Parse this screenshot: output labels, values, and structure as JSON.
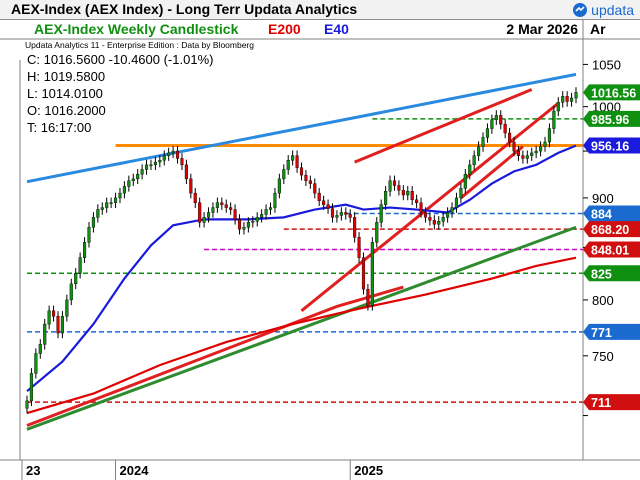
{
  "window": {
    "title": "AEX-Index (AEX Index) - Long Terr  Updata Analytics",
    "brand": "updata",
    "brand_color": "#1a6ad0",
    "icon": "updata-logo-icon"
  },
  "header": {
    "chart_title": "AEX-Index Weekly Candlestick",
    "ma1_label": "E200",
    "ma1_color": "#e00000",
    "ma2_label": "E40",
    "ma2_color": "#1a1adc",
    "date": "2 Mar 2026",
    "axis_unit": "Ar",
    "subtitle": "Updata Analytics 11 - Enterprise Edition : Data by Bloomberg"
  },
  "ohlc": {
    "close": "C: 1016.5600  -10.4600 (-1.01%)",
    "high": "H: 1019.5800",
    "low": "L: 1014.0100",
    "open": "O: 1016.2000",
    "time": "T: 16:17:00"
  },
  "chart_data": {
    "type": "candlestick",
    "title": "AEX-Index Weekly Candlestick",
    "ylim": [
      665,
      1080
    ],
    "y_scale": "log",
    "y_ticks": [
      700,
      750,
      800,
      850,
      900,
      950,
      1000,
      1050
    ],
    "y_tick_labels": [
      "",
      "750",
      "800",
      "",
      "900",
      "",
      "1000",
      "1050"
    ],
    "x_labels": [
      {
        "label": "23",
        "week": 0
      },
      {
        "label": "2024",
        "week": 20
      },
      {
        "label": "2025",
        "week": 73
      }
    ],
    "weeks_total": 124,
    "last_week": 124,
    "closes": [
      712,
      735,
      752,
      760,
      778,
      790,
      785,
      770,
      785,
      800,
      815,
      825,
      840,
      855,
      870,
      880,
      888,
      890,
      895,
      895,
      900,
      905,
      912,
      918,
      920,
      925,
      930,
      935,
      935,
      938,
      940,
      945,
      948,
      950,
      942,
      935,
      920,
      905,
      895,
      875,
      880,
      885,
      890,
      895,
      893,
      890,
      888,
      878,
      868,
      870,
      875,
      876,
      880,
      883,
      888,
      890,
      905,
      920,
      930,
      940,
      945,
      932,
      924,
      918,
      915,
      905,
      897,
      893,
      889,
      880,
      882,
      885,
      883,
      880,
      860,
      840,
      810,
      795,
      855,
      875,
      893,
      907,
      918,
      913,
      908,
      903,
      907,
      898,
      895,
      885,
      880,
      877,
      873,
      876,
      880,
      885,
      890,
      900,
      910,
      925,
      935,
      945,
      955,
      965,
      975,
      985,
      990,
      980,
      970,
      960,
      950,
      945,
      942,
      945,
      948,
      950,
      955,
      960,
      975,
      995,
      1005,
      1012,
      1006,
      1010,
      1016.56
    ],
    "ema200": {
      "label": "E200",
      "color": "#e00000",
      "points": [
        [
          0,
          702
        ],
        [
          15,
          718
        ],
        [
          30,
          742
        ],
        [
          45,
          762
        ],
        [
          60,
          778
        ],
        [
          75,
          792
        ],
        [
          90,
          805
        ],
        [
          105,
          820
        ],
        [
          115,
          832
        ],
        [
          124,
          840
        ]
      ]
    },
    "ema40": {
      "label": "E40",
      "color": "#1a1adc",
      "points": [
        [
          0,
          720
        ],
        [
          8,
          745
        ],
        [
          15,
          778
        ],
        [
          22,
          820
        ],
        [
          28,
          852
        ],
        [
          33,
          872
        ],
        [
          40,
          878
        ],
        [
          50,
          878
        ],
        [
          58,
          880
        ],
        [
          65,
          888
        ],
        [
          72,
          893
        ],
        [
          76,
          888
        ],
        [
          82,
          890
        ],
        [
          88,
          888
        ],
        [
          95,
          885
        ],
        [
          100,
          898
        ],
        [
          105,
          915
        ],
        [
          110,
          928
        ],
        [
          115,
          935
        ],
        [
          120,
          948
        ],
        [
          124,
          956
        ]
      ]
    },
    "trendlines": [
      {
        "name": "upper-resistance",
        "color": "#2a8ae0",
        "points": [
          [
            0,
            917
          ],
          [
            124,
            1038
          ]
        ]
      },
      {
        "name": "long-support",
        "color": "#2e8b2e",
        "points": [
          [
            0,
            689
          ],
          [
            124,
            870
          ]
        ]
      },
      {
        "name": "red-long",
        "color": "#e02020",
        "points": [
          [
            0,
            692
          ],
          [
            70,
            794
          ],
          [
            85,
            812
          ]
        ]
      },
      {
        "name": "wedge-upper",
        "color": "#e02020",
        "points": [
          [
            74,
            938
          ],
          [
            114,
            1020
          ]
        ]
      },
      {
        "name": "wedge-lower",
        "color": "#e02020",
        "points": [
          [
            62,
            790
          ],
          [
            120,
            1004
          ]
        ]
      },
      {
        "name": "red-up-short",
        "color": "#e02020",
        "points": [
          [
            98,
            900
          ],
          [
            112,
            955
          ]
        ]
      }
    ],
    "hlines": [
      {
        "value": 956.16,
        "label": "956.16",
        "color": "#ff8c00",
        "style": "solid",
        "from": 20,
        "fill": "#1a1adc"
      },
      {
        "value": 985.96,
        "label": "985.96",
        "color": "#109010",
        "style": "dashed",
        "from": 78,
        "fill": "#109010"
      },
      {
        "value": 884,
        "label": "884",
        "color": "#1a6ad0",
        "style": "dashed",
        "from": 72,
        "fill": "#1a6ad0"
      },
      {
        "value": 868.2,
        "label": "868.20",
        "color": "#d01010",
        "style": "dashed",
        "from": 58,
        "fill": "#d01010"
      },
      {
        "value": 848.01,
        "label": "848.01",
        "color": "#d000d0",
        "style": "dashed",
        "from": 40,
        "fill": "#d01010"
      },
      {
        "value": 825,
        "label": "825",
        "color": "#109010",
        "style": "dashed",
        "from": 0,
        "fill": "#109010"
      },
      {
        "value": 771,
        "label": "771",
        "color": "#1a6ad0",
        "style": "dashed",
        "from": 0,
        "fill": "#1a6ad0"
      },
      {
        "value": 711,
        "label": "711",
        "color": "#d01010",
        "style": "dashed",
        "from": 0,
        "fill": "#d01010"
      }
    ],
    "last_price": {
      "value": 1016.56,
      "label": "1016.56",
      "fill": "#109010"
    },
    "up_color": "#109010",
    "down_color": "#e00000"
  }
}
